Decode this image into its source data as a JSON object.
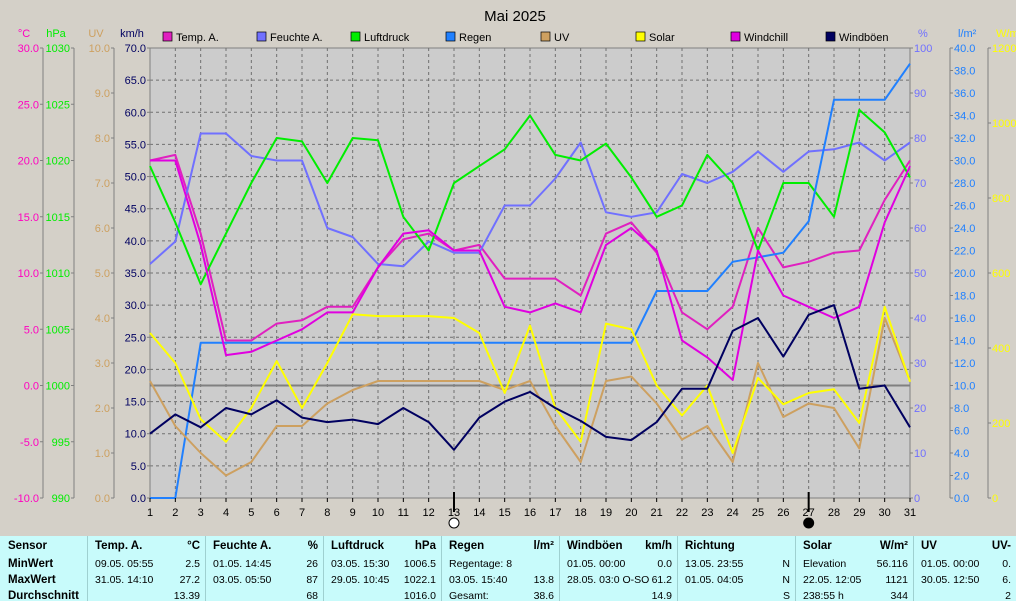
{
  "chart_data": {
    "type": "line",
    "title": "Mai 2025",
    "x": [
      1,
      2,
      3,
      4,
      5,
      6,
      7,
      8,
      9,
      10,
      11,
      12,
      13,
      14,
      15,
      16,
      17,
      18,
      19,
      20,
      21,
      22,
      23,
      24,
      25,
      26,
      27,
      28,
      29,
      30,
      31
    ],
    "x_ticks": [
      "1",
      "2",
      "3",
      "4",
      "5",
      "6",
      "7",
      "8",
      "9",
      "10",
      "11",
      "12",
      "13",
      "14",
      "15",
      "16",
      "17",
      "18",
      "19",
      "20",
      "21",
      "22",
      "23",
      "24",
      "25",
      "26",
      "27",
      "28",
      "29",
      "30",
      "31"
    ],
    "grid": true,
    "legend_position": "top",
    "axes": {
      "temp": {
        "unit": "°C",
        "color": "#ff00c0",
        "range": [
          -10,
          30
        ],
        "ticks": [
          "-10.0",
          "-5.0",
          "0.0",
          "5.0",
          "10.0",
          "15.0",
          "20.0",
          "25.0",
          "30.0"
        ],
        "side": "left"
      },
      "pressure": {
        "unit": "hPa",
        "color": "#00ee00",
        "range": [
          990,
          1030
        ],
        "ticks": [
          "990",
          "995",
          "1000",
          "1005",
          "1010",
          "1015",
          "1020",
          "1025",
          "1030"
        ],
        "side": "left"
      },
      "uv": {
        "unit": "UV",
        "color": "#cda060",
        "range": [
          0,
          10
        ],
        "ticks": [
          "0.0",
          "1.0",
          "2.0",
          "3.0",
          "4.0",
          "5.0",
          "6.0",
          "7.0",
          "8.0",
          "9.0",
          "10.0"
        ],
        "side": "left"
      },
      "wind": {
        "unit": "km/h",
        "color": "#000060",
        "range": [
          0,
          70
        ],
        "ticks": [
          "0.0",
          "5.0",
          "10.0",
          "15.0",
          "20.0",
          "25.0",
          "30.0",
          "35.0",
          "40.0",
          "45.0",
          "50.0",
          "55.0",
          "60.0",
          "65.0",
          "70.0"
        ],
        "side": "left"
      },
      "humidity": {
        "unit": "%",
        "color": "#7070ff",
        "range": [
          0,
          100
        ],
        "ticks": [
          "0",
          "10",
          "20",
          "30",
          "40",
          "50",
          "60",
          "70",
          "80",
          "90",
          "100"
        ],
        "side": "right"
      },
      "rain": {
        "unit": "l/m²",
        "color": "#2080ff",
        "range": [
          0,
          40
        ],
        "ticks": [
          "0.0",
          "2.0",
          "4.0",
          "6.0",
          "8.0",
          "10.0",
          "12.0",
          "14.0",
          "16.0",
          "18.0",
          "20.0",
          "22.0",
          "24.0",
          "26.0",
          "28.0",
          "30.0",
          "32.0",
          "34.0",
          "36.0",
          "38.0",
          "40.0"
        ],
        "side": "right"
      },
      "solar": {
        "unit": "W/m²",
        "color": "#ffff00",
        "range": [
          0,
          1200
        ],
        "ticks": [
          "0",
          "200",
          "400",
          "600",
          "800",
          "1000",
          "1200"
        ],
        "side": "right"
      }
    },
    "series": [
      {
        "name": "Temp. A.",
        "axis": "temp",
        "color": "#e020c0",
        "values": [
          20.0,
          20.5,
          13.5,
          4.0,
          4.0,
          5.5,
          5.8,
          7.0,
          7.0,
          10.5,
          13.0,
          13.5,
          12.0,
          12.5,
          9.5,
          9.5,
          9.5,
          8.0,
          13.5,
          14.5,
          11.8,
          6.5,
          5.0,
          7.0,
          14.0,
          10.5,
          11.0,
          11.8,
          12.0,
          16.5,
          20.0
        ]
      },
      {
        "name": "Feuchte A.",
        "axis": "humidity",
        "color": "#7070ff",
        "values": [
          52,
          57,
          81,
          81,
          76,
          75,
          75,
          60,
          58,
          52,
          51.5,
          57,
          54.5,
          54.5,
          65,
          65,
          71,
          79,
          63.5,
          62.5,
          63.5,
          72,
          70,
          72.5,
          77,
          72.5,
          77,
          77.5,
          79,
          75,
          79
        ]
      },
      {
        "name": "Luftdruck",
        "axis": "pressure",
        "color": "#00ee00",
        "values": [
          1019.5,
          1014.5,
          1009.0,
          1013.5,
          1018.0,
          1022.0,
          1021.7,
          1018.0,
          1022.0,
          1021.8,
          1015.0,
          1012.0,
          1018.0,
          1019.5,
          1021.0,
          1024.0,
          1020.5,
          1020.0,
          1021.5,
          1018.5,
          1015.0,
          1016.0,
          1020.5,
          1018.0,
          1012.0,
          1018.0,
          1018.0,
          1015.0,
          1024.5,
          1022.5,
          1018.5
        ]
      },
      {
        "name": "Regen",
        "axis": "rain",
        "color": "#2080ff",
        "values": [
          0.0,
          0.0,
          13.8,
          13.8,
          13.8,
          13.8,
          13.8,
          13.8,
          13.8,
          13.8,
          13.8,
          13.8,
          13.8,
          13.8,
          13.8,
          13.8,
          13.8,
          13.8,
          13.8,
          13.8,
          18.4,
          18.4,
          18.4,
          21.0,
          21.4,
          21.8,
          24.6,
          35.4,
          35.4,
          35.4,
          38.6
        ]
      },
      {
        "name": "UV",
        "axis": "uv",
        "color": "#cda060",
        "values": [
          2.6,
          1.6,
          1.0,
          0.5,
          0.8,
          1.6,
          1.6,
          2.1,
          2.4,
          2.6,
          2.6,
          2.6,
          2.6,
          2.6,
          2.4,
          2.6,
          1.6,
          0.8,
          2.6,
          2.7,
          2.1,
          1.3,
          1.6,
          0.8,
          3.0,
          1.8,
          2.1,
          2.0,
          1.1,
          4.0,
          2.6
        ]
      },
      {
        "name": "Solar",
        "axis": "solar",
        "color": "#ffff00",
        "values": [
          440,
          360,
          210,
          150,
          240,
          365,
          240,
          360,
          490,
          485,
          485,
          485,
          480,
          440,
          280,
          460,
          240,
          150,
          465,
          450,
          300,
          220,
          300,
          120,
          320,
          250,
          280,
          290,
          200,
          510,
          310
        ]
      },
      {
        "name": "Windchill",
        "axis": "temp",
        "color": "#e000e0",
        "values": [
          20.0,
          20.0,
          12.5,
          2.7,
          3.0,
          4.0,
          5.0,
          6.5,
          6.5,
          10.5,
          13.5,
          13.8,
          12.0,
          12.0,
          7.0,
          6.5,
          7.3,
          6.5,
          12.5,
          14.0,
          12.0,
          4.0,
          2.5,
          0.5,
          12.0,
          8.0,
          7.0,
          6.0,
          7.0,
          14.5,
          19.5
        ]
      },
      {
        "name": "Windböen",
        "axis": "wind",
        "color": "#000060",
        "values": [
          10,
          13,
          11,
          14,
          13,
          15.2,
          12.5,
          11.8,
          12.2,
          11.5,
          14,
          11.8,
          7.5,
          12.5,
          15,
          16.5,
          14,
          12,
          9.5,
          9,
          11.8,
          17,
          17,
          26,
          28,
          22,
          28.5,
          30,
          17,
          17.5,
          11
        ]
      }
    ],
    "markers": [
      {
        "x": 13,
        "symbol": "○"
      },
      {
        "x": 27,
        "symbol": "●"
      }
    ],
    "zero_line_temp": 0
  },
  "stats": {
    "sensor": {
      "header": "Sensor",
      "rows": [
        "MinWert",
        "MaxWert",
        "Durchschnitt"
      ]
    },
    "panels": [
      {
        "title": "Temp. A.",
        "unit": "°C",
        "rows": [
          [
            "09.05.  05:55",
            "2.5"
          ],
          [
            "31.05.  14:10",
            "27.2"
          ],
          [
            "",
            "13.39"
          ]
        ]
      },
      {
        "title": "Feuchte A.",
        "unit": "%",
        "rows": [
          [
            "01.05.  14:45",
            "26"
          ],
          [
            "03.05.  05:50",
            "87"
          ],
          [
            "",
            "68"
          ]
        ]
      },
      {
        "title": "Luftdruck",
        "unit": "hPa",
        "rows": [
          [
            "03.05.  15:30",
            "1006.5"
          ],
          [
            "29.05.  10:45",
            "1022.1"
          ],
          [
            "",
            "1016.0"
          ]
        ]
      },
      {
        "title": "Regen",
        "unit": "l/m²",
        "rows": [
          [
            "Regentage: 8",
            ""
          ],
          [
            "03.05.  15:40",
            "13.8"
          ],
          [
            "Gesamt:",
            "38.6"
          ]
        ]
      },
      {
        "title": "Windböen",
        "unit": "km/h",
        "rows": [
          [
            "01.05.  00:00",
            "0.0"
          ],
          [
            "28.05.  03:0 O-SO",
            "61.2"
          ],
          [
            "",
            "14.9"
          ]
        ]
      },
      {
        "title": "Richtung",
        "unit": "",
        "rows": [
          [
            "13.05.  23:55",
            "N"
          ],
          [
            "01.05.  04:05",
            "N"
          ],
          [
            "",
            "S"
          ]
        ]
      },
      {
        "title": "Solar",
        "unit": "W/m²",
        "rows": [
          [
            "Elevation",
            "56.116"
          ],
          [
            "22.05.  12:05",
            "1121"
          ],
          [
            "238:55 h",
            "344"
          ]
        ]
      },
      {
        "title": "UV",
        "unit": "UV-",
        "rows": [
          [
            "01.05.  00:00",
            "0."
          ],
          [
            "30.05.  12:50",
            "6."
          ],
          [
            "",
            "2"
          ]
        ]
      }
    ]
  }
}
